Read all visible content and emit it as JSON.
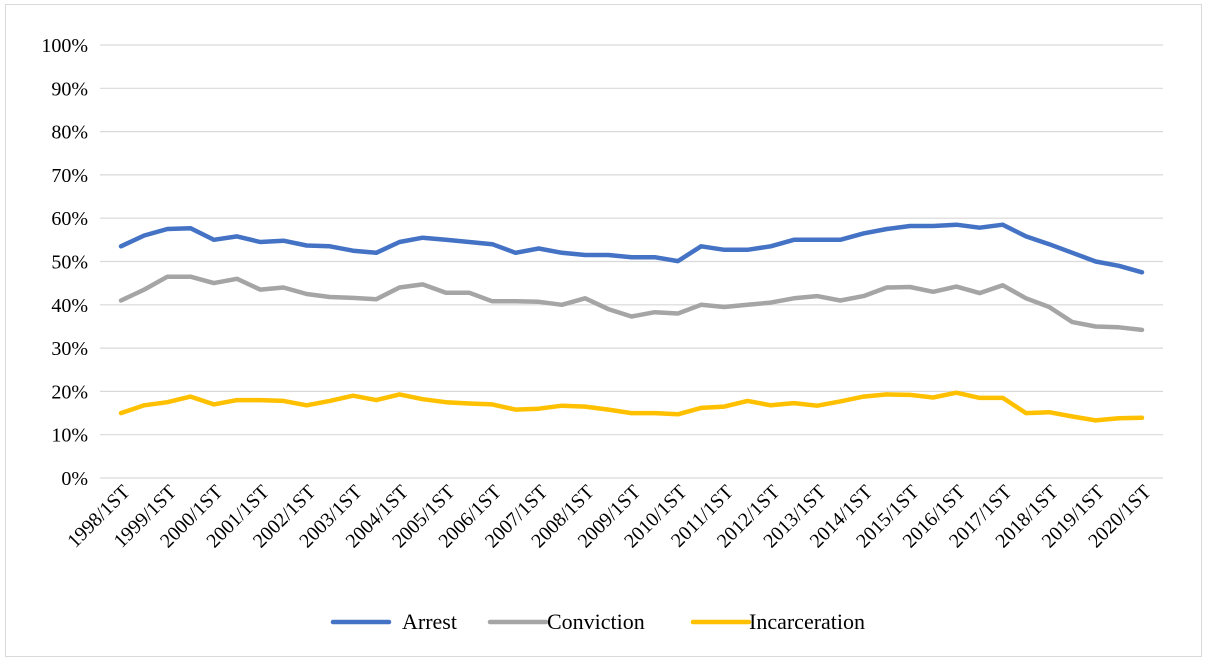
{
  "chart_data": {
    "type": "line",
    "title": "",
    "xlabel": "",
    "ylabel": "",
    "ylim": [
      0,
      100
    ],
    "y_ticks": [
      "0%",
      "10%",
      "20%",
      "30%",
      "40%",
      "50%",
      "60%",
      "70%",
      "80%",
      "90%",
      "100%"
    ],
    "x_tick_labels": [
      "1998/1ST",
      "1999/1ST",
      "2000/1ST",
      "2001/1ST",
      "2002/1ST",
      "2003/1ST",
      "2004/1ST",
      "2005/1ST",
      "2006/1ST",
      "2007/1ST",
      "2008/1ST",
      "2009/1ST",
      "2010/1ST",
      "2011/1ST",
      "2012/1ST",
      "2013/1ST",
      "2014/1ST",
      "2015/1ST",
      "2016/1ST",
      "2017/1ST",
      "2018/1ST",
      "2019/1ST",
      "2020/1ST"
    ],
    "grid": true,
    "legend_position": "bottom-center",
    "series": [
      {
        "name": "Arrest",
        "color": "#4472C4",
        "values": [
          53.5,
          56,
          57.5,
          57.7,
          55,
          55.8,
          54.5,
          54.8,
          53.7,
          53.5,
          52.5,
          52,
          54.5,
          55.5,
          55,
          54.5,
          54,
          52,
          53,
          52,
          51.5,
          51.5,
          51,
          51,
          50.1,
          53.5,
          52.7,
          52.7,
          53.5,
          55,
          55,
          55,
          56.5,
          57.5,
          58.2,
          58.2,
          58.5,
          57.8,
          58.5,
          55.8,
          54,
          52,
          50,
          49,
          47.5
        ]
      },
      {
        "name": "Conviction",
        "color": "#A5A5A5",
        "values": [
          41,
          43.5,
          46.5,
          46.5,
          45,
          46,
          43.5,
          44,
          42.5,
          41.8,
          41.6,
          41.3,
          44,
          44.7,
          42.8,
          42.8,
          40.8,
          40.8,
          40.7,
          40,
          41.5,
          39,
          37.3,
          38.3,
          38,
          40,
          39.5,
          40,
          40.5,
          41.5,
          42,
          41,
          42,
          44,
          44.1,
          43,
          44.2,
          42.7,
          44.5,
          41.5,
          39.5,
          36,
          35,
          34.8,
          34.2
        ]
      },
      {
        "name": "Incarceration",
        "color": "#FFC000",
        "values": [
          15,
          16.8,
          17.5,
          18.8,
          17,
          18,
          18,
          17.8,
          16.8,
          17.8,
          19,
          18,
          19.3,
          18.2,
          17.5,
          17.2,
          17,
          15.8,
          16,
          16.7,
          16.5,
          15.8,
          15,
          15,
          14.7,
          16.2,
          16.5,
          17.8,
          16.8,
          17.3,
          16.7,
          17.7,
          18.8,
          19.3,
          19.2,
          18.6,
          19.7,
          18.5,
          18.5,
          15,
          15.2,
          14.2,
          13.3,
          13.8,
          13.9
        ]
      }
    ]
  }
}
